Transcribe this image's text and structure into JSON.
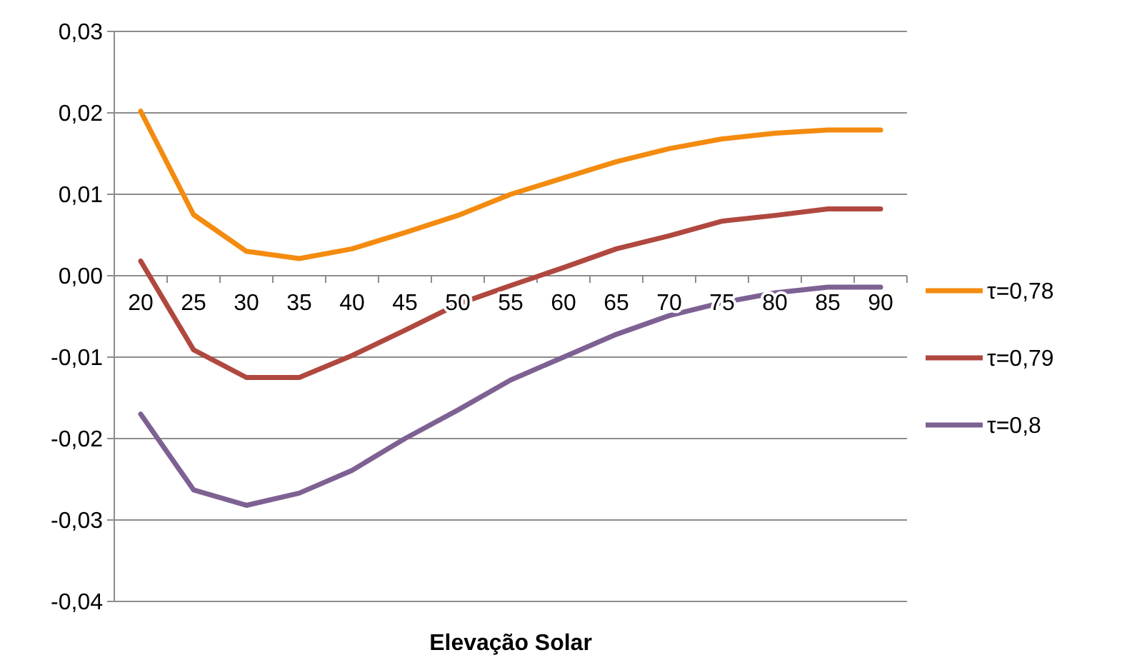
{
  "chart_data": {
    "type": "line",
    "xlabel": "Elevação Solar",
    "categories": [
      "20",
      "25",
      "30",
      "35",
      "40",
      "45",
      "50",
      "55",
      "60",
      "65",
      "70",
      "75",
      "80",
      "85",
      "90"
    ],
    "series": [
      {
        "name": "τ=0,78",
        "color": "#f38b0f",
        "values": [
          0.0202,
          0.0075,
          0.003,
          0.0021,
          0.0033,
          0.0053,
          0.0074,
          0.01,
          0.012,
          0.014,
          0.0156,
          0.0168,
          0.0175,
          0.0179,
          0.0179
        ]
      },
      {
        "name": "τ=0,79",
        "color": "#b0483f",
        "values": [
          0.0018,
          -0.0091,
          -0.0125,
          -0.0125,
          -0.0098,
          -0.0067,
          -0.0035,
          -0.0012,
          0.001,
          0.0033,
          0.0049,
          0.0067,
          0.0074,
          0.0082,
          0.0082
        ]
      },
      {
        "name": "τ=0,8",
        "color": "#7e6193",
        "values": [
          -0.017,
          -0.0263,
          -0.0282,
          -0.0267,
          -0.0239,
          -0.02,
          -0.0165,
          -0.0128,
          -0.01,
          -0.0072,
          -0.0049,
          -0.0033,
          -0.0021,
          -0.0014,
          -0.0014
        ]
      }
    ],
    "ylim": [
      -0.04,
      0.03
    ],
    "yticks": [
      {
        "value": -0.04,
        "label": "-0,04"
      },
      {
        "value": -0.03,
        "label": "-0,03"
      },
      {
        "value": -0.02,
        "label": "-0,02"
      },
      {
        "value": -0.01,
        "label": "-0,01"
      },
      {
        "value": 0,
        "label": "0,00"
      },
      {
        "value": 0.01,
        "label": "0,01"
      },
      {
        "value": 0.02,
        "label": "0,02"
      },
      {
        "value": 0.03,
        "label": "0,03"
      }
    ],
    "grid": "y",
    "legend": "right",
    "marker": "none",
    "line_style": "solid"
  }
}
